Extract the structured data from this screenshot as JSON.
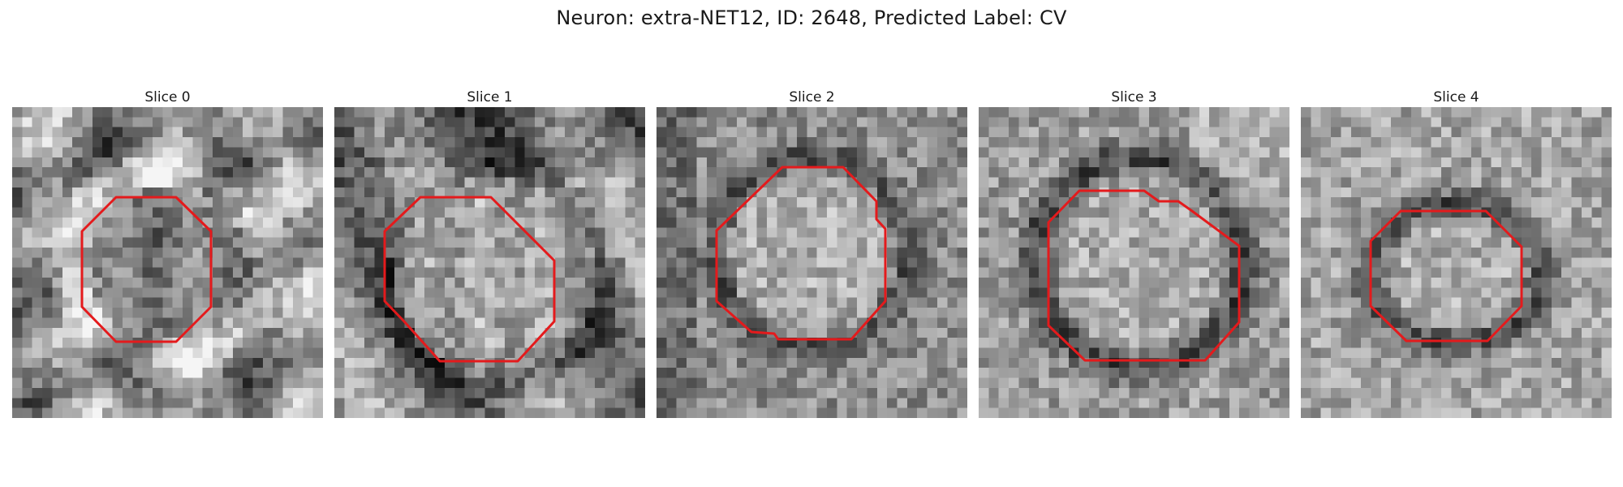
{
  "figure": {
    "title": "Neuron: extra-NET12, ID: 2648, Predicted Label: CV",
    "outline_color": "#e41a1c"
  },
  "slices": [
    {
      "label": "Slice 0"
    },
    {
      "label": "Slice 1"
    },
    {
      "label": "Slice 2"
    },
    {
      "label": "Slice 3"
    },
    {
      "label": "Slice 4"
    }
  ]
}
